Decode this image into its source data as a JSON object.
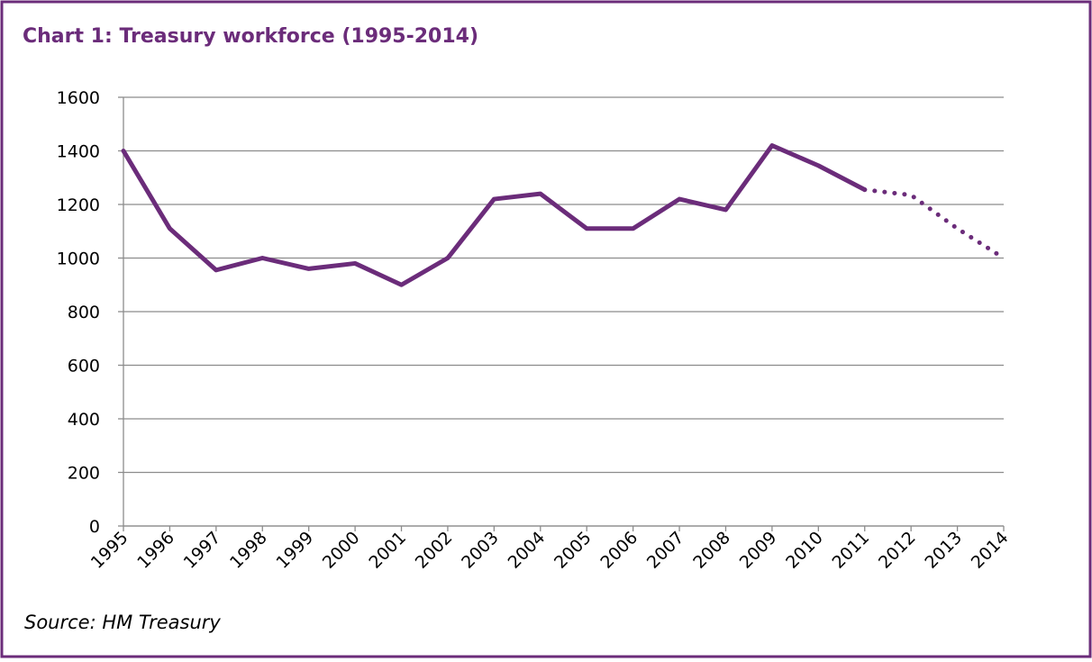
{
  "chart_data": {
    "type": "line",
    "title": "Chart 1: Treasury workforce (1995-2014)",
    "source": "Source: HM Treasury",
    "categories": [
      "1995",
      "1996",
      "1997",
      "1998",
      "1999",
      "2000",
      "2001",
      "2002",
      "2003",
      "2004",
      "2005",
      "2006",
      "2007",
      "2008",
      "2009",
      "2010",
      "2011",
      "2012",
      "2013",
      "2014"
    ],
    "series": [
      {
        "color": "#6b2c7a",
        "style": "solid",
        "values": [
          1400,
          1110,
          955,
          1000,
          960,
          980,
          900,
          1000,
          1220,
          1240,
          1110,
          1110,
          1220,
          1180,
          1420,
          1345,
          1255,
          null,
          null,
          null
        ]
      },
      {
        "color": "#6b2c7a",
        "style": "dotted",
        "values": [
          null,
          null,
          null,
          null,
          null,
          null,
          null,
          null,
          null,
          null,
          null,
          null,
          null,
          null,
          null,
          null,
          1255,
          1235,
          1110,
          1000
        ]
      }
    ],
    "ylim": [
      0,
      1600
    ],
    "yticks": [
      0,
      200,
      400,
      600,
      800,
      1000,
      1200,
      1400,
      1600
    ],
    "grid": true
  }
}
